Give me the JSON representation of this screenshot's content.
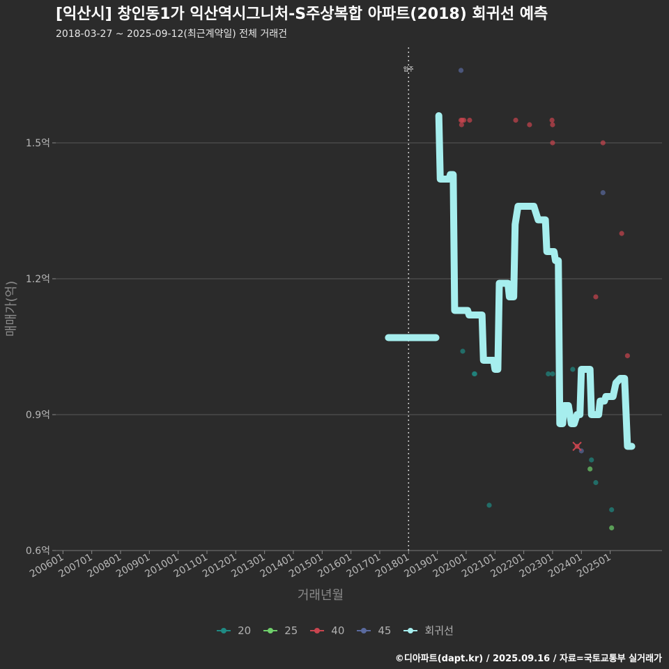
{
  "title": "[익산시] 창인동1가 익산역시그니처-S주상복합 아파트(2018) 회귀선 예측",
  "subtitle": "2018-03-27 ~ 2025-09-12(최근계약일) 전체 거래건",
  "caption": "©디아파트(dapt.kr) / 2025.09.16 / 자료=국토교통부 실거래가",
  "chart_data": {
    "type": "scatter",
    "title": "[익산시] 창인동1가 익산역시그니처-S주상복합 아파트(2018) 회귀선 예측",
    "xlabel": "거래년월",
    "ylabel": "매매가(억)",
    "xlim": [
      2005.75,
      2026.8
    ],
    "ylim": [
      0.6,
      1.72
    ],
    "x_ticks": [
      "200601",
      "200701",
      "200801",
      "200901",
      "201001",
      "201101",
      "201201",
      "201301",
      "201401",
      "201501",
      "201601",
      "201701",
      "201801",
      "201901",
      "202001",
      "202101",
      "202201",
      "202301",
      "202401",
      "202501"
    ],
    "y_ticks": [
      {
        "value": 0.6,
        "label": "0.6억"
      },
      {
        "value": 0.9,
        "label": "0.9억"
      },
      {
        "value": 1.2,
        "label": "1.2억"
      },
      {
        "value": 1.5,
        "label": "1.5억"
      }
    ],
    "vline": {
      "x": 2018.0,
      "label": "입주"
    },
    "series": [
      {
        "name": "20",
        "color": "#1f8a83",
        "points": [
          [
            2019.88,
            1.04
          ],
          [
            2020.28,
            0.99
          ],
          [
            2020.3,
            0.99
          ],
          [
            2020.8,
            0.7
          ],
          [
            2022.85,
            0.99
          ],
          [
            2023.0,
            0.99
          ],
          [
            2023.7,
            1.0
          ],
          [
            2024.35,
            0.8
          ],
          [
            2024.5,
            0.75
          ],
          [
            2025.05,
            0.69
          ]
        ]
      },
      {
        "name": "25",
        "color": "#6fcf6b",
        "points": [
          [
            2024.3,
            0.78
          ],
          [
            2025.05,
            0.65
          ]
        ]
      },
      {
        "name": "40",
        "color": "#c9454f",
        "points": [
          [
            2019.82,
            1.55
          ],
          [
            2019.84,
            1.54
          ],
          [
            2019.86,
            1.55
          ],
          [
            2019.92,
            1.55
          ],
          [
            2020.12,
            1.55
          ],
          [
            2021.72,
            1.55
          ],
          [
            2022.2,
            1.54
          ],
          [
            2022.98,
            1.55
          ],
          [
            2023.0,
            1.54
          ],
          [
            2023.0,
            1.5
          ],
          [
            2024.5,
            1.16
          ],
          [
            2024.75,
            1.5
          ],
          [
            2025.4,
            1.3
          ],
          [
            2025.6,
            1.03
          ],
          [
            2023.85,
            0.83
          ]
        ]
      },
      {
        "name": "45",
        "color": "#5a6a9e",
        "points": [
          [
            2019.82,
            1.66
          ],
          [
            2024.0,
            0.82
          ],
          [
            2024.75,
            1.39
          ]
        ]
      },
      {
        "name": "회귀선",
        "color": "#a6eeee",
        "type": "step-line",
        "points": [
          [
            2017.3,
            1.07
          ],
          [
            2018.95,
            1.07
          ],
          [
            2019.05,
            1.56
          ],
          [
            2019.1,
            1.42
          ],
          [
            2019.4,
            1.42
          ],
          [
            2019.45,
            1.43
          ],
          [
            2019.55,
            1.43
          ],
          [
            2019.6,
            1.13
          ],
          [
            2020.05,
            1.13
          ],
          [
            2020.1,
            1.12
          ],
          [
            2020.55,
            1.12
          ],
          [
            2020.6,
            1.02
          ],
          [
            2020.95,
            1.02
          ],
          [
            2021.0,
            1.0
          ],
          [
            2021.1,
            1.0
          ],
          [
            2021.15,
            1.19
          ],
          [
            2021.45,
            1.19
          ],
          [
            2021.5,
            1.16
          ],
          [
            2021.65,
            1.16
          ],
          [
            2021.7,
            1.32
          ],
          [
            2021.8,
            1.36
          ],
          [
            2022.35,
            1.36
          ],
          [
            2022.5,
            1.33
          ],
          [
            2022.75,
            1.33
          ],
          [
            2022.8,
            1.26
          ],
          [
            2023.05,
            1.26
          ],
          [
            2023.1,
            1.24
          ],
          [
            2023.2,
            1.24
          ],
          [
            2023.25,
            0.88
          ],
          [
            2023.35,
            0.88
          ],
          [
            2023.4,
            0.92
          ],
          [
            2023.55,
            0.92
          ],
          [
            2023.65,
            0.88
          ],
          [
            2023.75,
            0.88
          ],
          [
            2023.85,
            0.9
          ],
          [
            2023.95,
            0.9
          ],
          [
            2024.0,
            1.0
          ],
          [
            2024.3,
            1.0
          ],
          [
            2024.35,
            0.9
          ],
          [
            2024.6,
            0.9
          ],
          [
            2024.65,
            0.93
          ],
          [
            2024.8,
            0.93
          ],
          [
            2024.85,
            0.94
          ],
          [
            2025.1,
            0.94
          ],
          [
            2025.2,
            0.97
          ],
          [
            2025.35,
            0.98
          ],
          [
            2025.5,
            0.98
          ],
          [
            2025.6,
            0.83
          ],
          [
            2025.75,
            0.83
          ]
        ]
      }
    ],
    "legend": [
      {
        "label": "20",
        "color": "#1f8a83"
      },
      {
        "label": "25",
        "color": "#6fcf6b"
      },
      {
        "label": "40",
        "color": "#c9454f"
      },
      {
        "label": "45",
        "color": "#5a6a9e"
      },
      {
        "label": "회귀선",
        "color": "#a6eeee"
      }
    ],
    "marker_x": {
      "x": 2023.85,
      "y": 0.83,
      "color": "#c9454f"
    }
  }
}
